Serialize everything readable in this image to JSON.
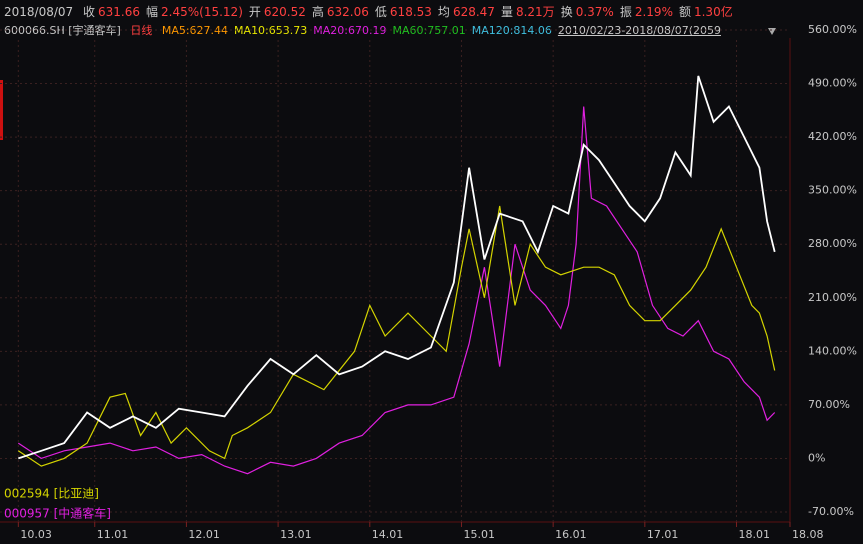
{
  "header": {
    "date": "2018/08/07",
    "quote": [
      {
        "label": "收",
        "value": "631.66"
      },
      {
        "label": "幅",
        "value": "2.45%(15.12)"
      },
      {
        "label": "开",
        "value": "620.52"
      },
      {
        "label": "高",
        "value": "632.06"
      },
      {
        "label": "低",
        "value": "618.53"
      },
      {
        "label": "均",
        "value": "628.47"
      },
      {
        "label": "量",
        "value": "8.21万"
      },
      {
        "label": "换",
        "value": "0.37%"
      },
      {
        "label": "振",
        "value": "2.19%"
      },
      {
        "label": "额",
        "value": "1.30亿"
      }
    ],
    "symbol": "600066.SH [宇通客车]",
    "period": "日线",
    "ma": [
      {
        "text": "MA5:627.44",
        "color": "#ff9900"
      },
      {
        "text": "MA10:653.73",
        "color": "#e8e800"
      },
      {
        "text": "MA20:670.19",
        "color": "#e020e0"
      },
      {
        "text": "MA60:757.01",
        "color": "#20c020"
      },
      {
        "text": "MA120:814.06",
        "color": "#40c0e0"
      }
    ],
    "range": "2010/02/23-2018/08/07(2059"
  },
  "chart_data": {
    "type": "line",
    "xlim": [
      -2.4,
      101
    ],
    "xticks": [
      {
        "value": 0,
        "label": "10.03"
      },
      {
        "value": 10,
        "label": "11.01"
      },
      {
        "value": 22,
        "label": "12.01"
      },
      {
        "value": 34,
        "label": "13.01"
      },
      {
        "value": 46,
        "label": "14.01"
      },
      {
        "value": 58,
        "label": "15.01"
      },
      {
        "value": 70,
        "label": "16.01"
      },
      {
        "value": 82,
        "label": "17.01"
      },
      {
        "value": 94,
        "label": "18.01"
      },
      {
        "value": 101,
        "label": "18.08"
      }
    ],
    "ylim": [
      -70,
      560
    ],
    "yticks": [
      {
        "value": -70,
        "label": "-70.00%"
      },
      {
        "value": 0,
        "label": "0%"
      },
      {
        "value": 70,
        "label": "70.00%"
      },
      {
        "value": 140,
        "label": "140.00%"
      },
      {
        "value": 210,
        "label": "210.00%"
      },
      {
        "value": 280,
        "label": "280.00%"
      },
      {
        "value": 350,
        "label": "350.00%"
      },
      {
        "value": 420,
        "label": "420.00%"
      },
      {
        "value": 490,
        "label": "490.00%"
      },
      {
        "value": 560,
        "label": "560.00%"
      }
    ],
    "grid": true,
    "series": [
      {
        "color": "#ffffff",
        "x": [
          0,
          3,
          6,
          9,
          12,
          15,
          18,
          21,
          24,
          27,
          30,
          33,
          36,
          39,
          42,
          45,
          48,
          51,
          54,
          57,
          59,
          61,
          63,
          66,
          68,
          70,
          72,
          74,
          76,
          78,
          80,
          82,
          84,
          86,
          88,
          89,
          91,
          93,
          95,
          97,
          98,
          99
        ],
        "values": [
          0,
          10,
          20,
          60,
          40,
          55,
          40,
          65,
          60,
          55,
          95,
          130,
          110,
          135,
          110,
          120,
          140,
          130,
          145,
          230,
          380,
          260,
          320,
          310,
          270,
          330,
          320,
          410,
          390,
          360,
          330,
          310,
          340,
          400,
          370,
          500,
          440,
          460,
          420,
          380,
          310,
          270
        ]
      },
      {
        "name": "002594 [比亚迪]",
        "color": "#d4d400",
        "x": [
          0,
          3,
          6,
          9,
          12,
          14,
          16,
          18,
          20,
          22,
          25,
          27,
          28,
          30,
          33,
          36,
          40,
          44,
          46,
          48,
          51,
          54,
          56,
          58,
          59,
          61,
          63,
          65,
          67,
          69,
          71,
          74,
          76,
          78,
          80,
          82,
          84,
          86,
          88,
          90,
          92,
          94,
          96,
          97,
          98,
          99
        ],
        "values": [
          10,
          -10,
          0,
          20,
          80,
          85,
          30,
          60,
          20,
          40,
          10,
          0,
          30,
          40,
          60,
          110,
          90,
          140,
          200,
          160,
          190,
          160,
          140,
          250,
          300,
          210,
          330,
          200,
          280,
          250,
          240,
          250,
          250,
          240,
          200,
          180,
          180,
          200,
          220,
          250,
          300,
          250,
          200,
          190,
          160,
          115
        ]
      },
      {
        "name": "000957 [中通客车]",
        "color": "#e020e0",
        "x": [
          0,
          3,
          6,
          9,
          12,
          15,
          18,
          21,
          24,
          27,
          30,
          33,
          36,
          39,
          42,
          45,
          48,
          51,
          54,
          57,
          59,
          61,
          63,
          65,
          67,
          69,
          71,
          72,
          73,
          74,
          75,
          77,
          79,
          81,
          83,
          85,
          87,
          89,
          91,
          93,
          95,
          97,
          98,
          99
        ],
        "values": [
          20,
          0,
          10,
          15,
          20,
          10,
          15,
          0,
          5,
          -10,
          -20,
          -5,
          -10,
          0,
          20,
          30,
          60,
          70,
          70,
          80,
          150,
          250,
          120,
          280,
          220,
          200,
          170,
          200,
          280,
          460,
          340,
          330,
          300,
          270,
          200,
          170,
          160,
          180,
          140,
          130,
          100,
          80,
          50,
          60
        ]
      }
    ]
  }
}
